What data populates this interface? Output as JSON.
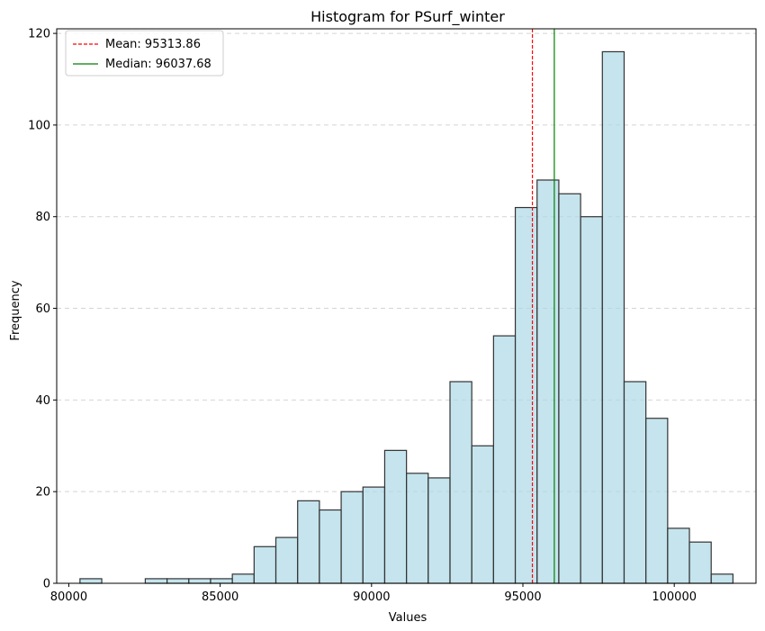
{
  "chart_data": {
    "type": "bar",
    "title": "Histogram for PSurf_winter",
    "xlabel": "Values",
    "ylabel": "Frequency",
    "xlim": [
      79600,
      102700
    ],
    "ylim": [
      0,
      121
    ],
    "xticks": [
      80000,
      85000,
      90000,
      95000,
      100000
    ],
    "yticks": [
      0,
      20,
      40,
      60,
      80,
      100,
      120
    ],
    "grid": "y-dashed",
    "bar_color": "#add8e6",
    "edge_color": "#333333",
    "bins": [
      {
        "start": 80369,
        "end": 81088,
        "count": 1
      },
      {
        "start": 81088,
        "end": 81807,
        "count": 0
      },
      {
        "start": 81807,
        "end": 82526,
        "count": 0
      },
      {
        "start": 82526,
        "end": 83245,
        "count": 1
      },
      {
        "start": 83245,
        "end": 83964,
        "count": 1
      },
      {
        "start": 83964,
        "end": 84683,
        "count": 1
      },
      {
        "start": 84683,
        "end": 85402,
        "count": 1
      },
      {
        "start": 85402,
        "end": 86121,
        "count": 2
      },
      {
        "start": 86121,
        "end": 86840,
        "count": 8
      },
      {
        "start": 86840,
        "end": 87559,
        "count": 10
      },
      {
        "start": 87559,
        "end": 88278,
        "count": 18
      },
      {
        "start": 88278,
        "end": 88997,
        "count": 16
      },
      {
        "start": 88997,
        "end": 89716,
        "count": 20
      },
      {
        "start": 89716,
        "end": 90435,
        "count": 21
      },
      {
        "start": 90435,
        "end": 91154,
        "count": 29
      },
      {
        "start": 91154,
        "end": 91873,
        "count": 24
      },
      {
        "start": 91873,
        "end": 92592,
        "count": 23
      },
      {
        "start": 92592,
        "end": 93311,
        "count": 44
      },
      {
        "start": 93311,
        "end": 94030,
        "count": 30
      },
      {
        "start": 94030,
        "end": 94749,
        "count": 54
      },
      {
        "start": 94749,
        "end": 95468,
        "count": 82
      },
      {
        "start": 95468,
        "end": 96187,
        "count": 88
      },
      {
        "start": 96187,
        "end": 96906,
        "count": 85
      },
      {
        "start": 96906,
        "end": 97625,
        "count": 80
      },
      {
        "start": 97625,
        "end": 98344,
        "count": 116
      },
      {
        "start": 98344,
        "end": 99063,
        "count": 44
      },
      {
        "start": 99063,
        "end": 99782,
        "count": 36
      },
      {
        "start": 99782,
        "end": 100501,
        "count": 12
      },
      {
        "start": 100501,
        "end": 101220,
        "count": 9
      },
      {
        "start": 101220,
        "end": 101939,
        "count": 2
      }
    ],
    "reference_lines": [
      {
        "name": "Mean",
        "label": "Mean: 95313.86",
        "value": 95313.86,
        "color": "#ff0000",
        "style": "dashed"
      },
      {
        "name": "Median",
        "label": "Median: 96037.68",
        "value": 96037.68,
        "color": "#008000",
        "style": "solid"
      }
    ],
    "legend": "top-left"
  }
}
